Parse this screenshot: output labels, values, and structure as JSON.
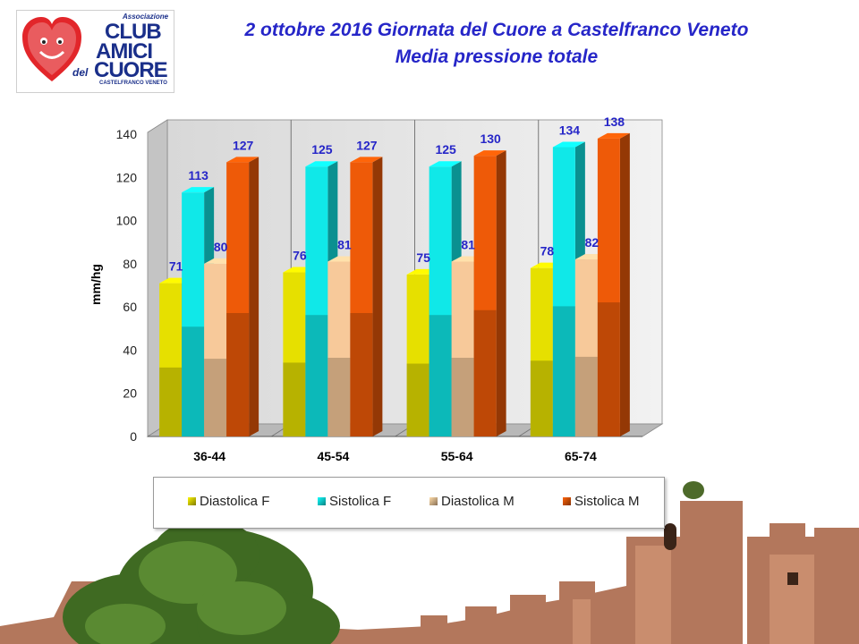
{
  "header": {
    "title_line1": "2 ottobre 2016 Giornata del Cuore a Castelfranco Veneto",
    "title_line2": "Media pressione totale"
  },
  "logo": {
    "line_associazione": "Associazione",
    "line_club": "CLUB",
    "line_amici": "AMICI",
    "line_del": "del",
    "line_cuore": "CUORE",
    "line_city": "CASTELFRANCO VENETO"
  },
  "chart_data": {
    "type": "bar",
    "style": "3d-clustered",
    "title": "",
    "xlabel": "",
    "ylabel": "mm/hg",
    "ylim": [
      0,
      140
    ],
    "yticks": [
      0,
      20,
      40,
      60,
      80,
      100,
      120,
      140
    ],
    "categories": [
      "36-44",
      "45-54",
      "55-64",
      "65-74"
    ],
    "series": [
      {
        "name": "Diastolica F",
        "color": "#e6e000",
        "values": [
          71,
          76,
          75,
          78
        ]
      },
      {
        "name": "Sistolica F",
        "color": "#10e8e8",
        "values": [
          113,
          125,
          125,
          134
        ]
      },
      {
        "name": "Diastolica M",
        "color": "#f7c99a",
        "values": [
          80,
          81,
          81,
          82
        ]
      },
      {
        "name": "Sistolica M",
        "color": "#ee5a08",
        "values": [
          127,
          127,
          130,
          138
        ]
      }
    ],
    "data_label_color": "#2626c8",
    "grid": false,
    "legend_position": "bottom"
  }
}
